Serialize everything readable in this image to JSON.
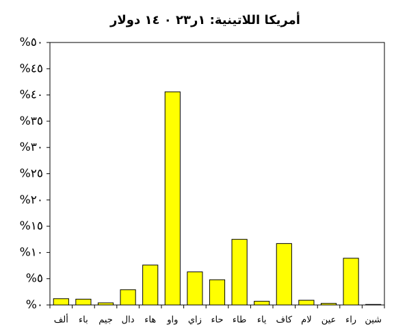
{
  "chart_data": {
    "type": "bar",
    "title": "أمريكا اللاتينية:  ١ر٢٣ ٠ ١٤ دولار",
    "categories": [
      "ألف",
      "باء",
      "جيم",
      "دال",
      "هاء",
      "واو",
      "زاي",
      "حاء",
      "طاء",
      "ياء",
      "كاف",
      "لام",
      "عين",
      "راء",
      "شين"
    ],
    "values": [
      1.2,
      1.1,
      0.4,
      2.9,
      7.6,
      40.6,
      6.3,
      4.8,
      12.5,
      0.7,
      11.7,
      0.9,
      0.3,
      8.9,
      0.1
    ],
    "color": "#ffff00",
    "ylim": [
      0,
      50
    ],
    "yticks": [
      {
        "value": 0,
        "label": "%٠"
      },
      {
        "value": 5,
        "label": "%٥"
      },
      {
        "value": 10,
        "label": "%١٠"
      },
      {
        "value": 15,
        "label": "%١٥"
      },
      {
        "value": 20,
        "label": "%٢٠"
      },
      {
        "value": 25,
        "label": "%٢٥"
      },
      {
        "value": 30,
        "label": "%٣٠"
      },
      {
        "value": 35,
        "label": "%٣٥"
      },
      {
        "value": 40,
        "label": "%٤٠"
      },
      {
        "value": 45,
        "label": "%٤٥"
      },
      {
        "value": 50,
        "label": "%٥٠"
      }
    ],
    "grid": false
  }
}
